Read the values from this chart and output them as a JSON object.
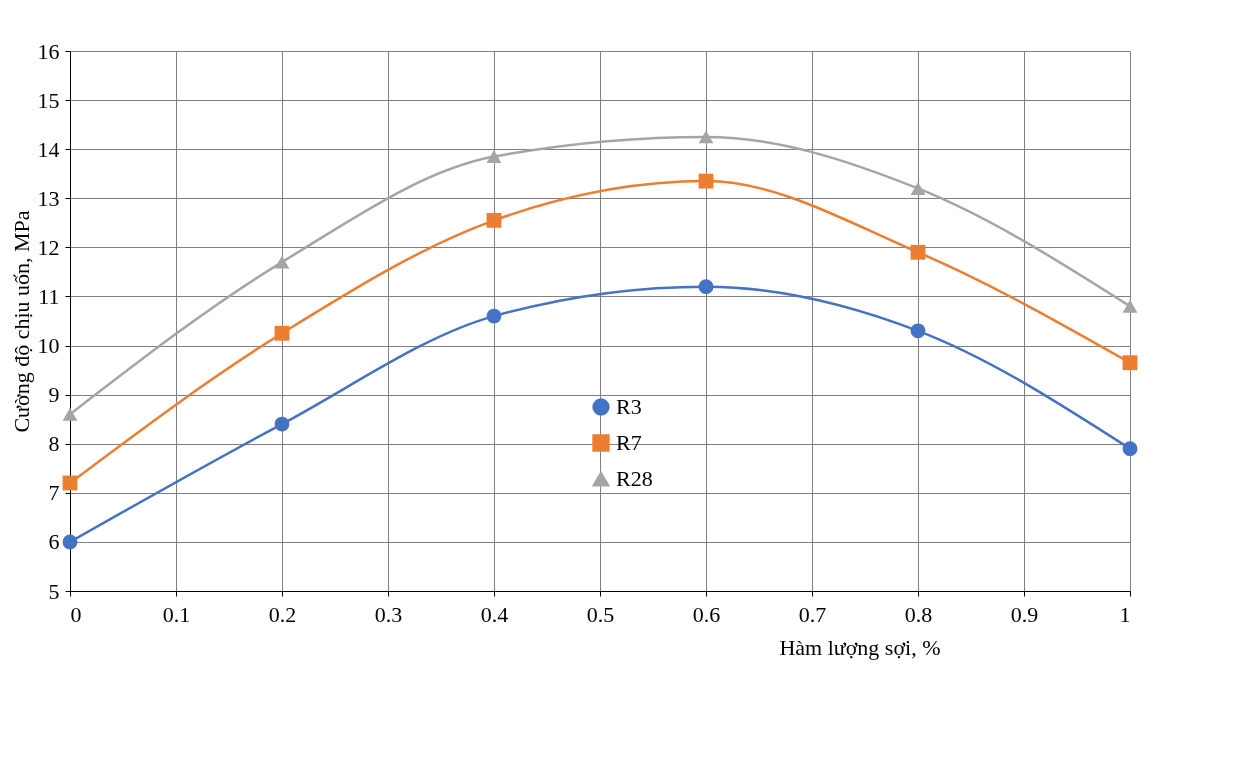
{
  "chart_data": {
    "type": "line",
    "xlabel": "Hàm lượng sợi, %",
    "ylabel": "Cường độ chịu uốn, MPa",
    "x": [
      0,
      0.2,
      0.4,
      0.6,
      0.8,
      1
    ],
    "series": [
      {
        "name": "R3",
        "color": "#4472c4",
        "marker": "circle",
        "values": [
          6.0,
          8.4,
          10.6,
          11.2,
          10.3,
          7.9
        ]
      },
      {
        "name": "R7",
        "color": "#ed7d31",
        "marker": "square",
        "values": [
          7.2,
          10.25,
          12.55,
          13.35,
          11.9,
          9.65
        ]
      },
      {
        "name": "R28",
        "color": "#a5a5a5",
        "marker": "triangle",
        "values": [
          8.6,
          11.7,
          13.85,
          14.25,
          13.2,
          10.8
        ]
      }
    ],
    "xlim": [
      0,
      1
    ],
    "xticks": [
      0,
      0.1,
      0.2,
      0.3,
      0.4,
      0.5,
      0.6,
      0.7,
      0.8,
      0.9,
      1
    ],
    "ylim": [
      5,
      16
    ],
    "yticks": [
      5,
      6,
      7,
      8,
      9,
      10,
      11,
      12,
      13,
      14,
      15,
      16
    ],
    "grid": true,
    "legend": "bottom"
  }
}
